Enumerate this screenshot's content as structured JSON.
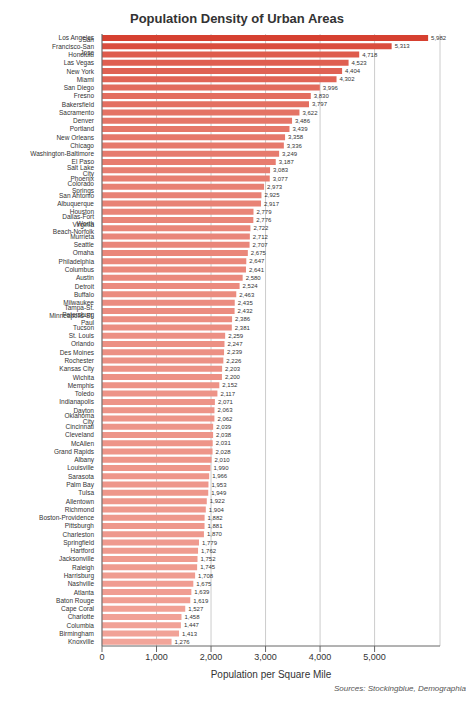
{
  "chart_data": {
    "type": "bar",
    "orientation": "horizontal",
    "title": "Population Density of Urban Areas",
    "xlabel": "Population per Square Mile",
    "annotation": "Sources: Stockingblue, Demographia",
    "categories": [
      "Los Angeles",
      "San Francisco-San Jose",
      "Honolulu",
      "Las Vegas",
      "New York",
      "Miami",
      "San Diego",
      "Fresno",
      "Bakersfield",
      "Sacramento",
      "Denver",
      "Portland",
      "New Orleans",
      "Chicago",
      "Washington-Baltimore",
      "El Paso",
      "Salt Lake City",
      "Phoenix",
      "Colorado Springs",
      "San Antonio",
      "Albuquerque",
      "Houston",
      "Dallas-Fort Worth",
      "Virginia Beach-Norfolk",
      "Murrieta",
      "Seattle",
      "Omaha",
      "Philadelphia",
      "Columbus",
      "Austin",
      "Detroit",
      "Buffalo",
      "Milwaukee",
      "Tampa-St. Petersburg",
      "Minneapolis-St. Paul",
      "Tucson",
      "St. Louis",
      "Orlando",
      "Des Moines",
      "Rochester",
      "Kansas City",
      "Wichita",
      "Memphis",
      "Toledo",
      "Indianapolis",
      "Dayton",
      "Oklahoma City",
      "Cincinnati",
      "Cleveland",
      "McAllen",
      "Grand Rapids",
      "Albany",
      "Louisville",
      "Sarasota",
      "Palm Bay",
      "Tulsa",
      "Allentown",
      "Richmond",
      "Boston-Providence",
      "Pittsburgh",
      "Charleston",
      "Springfield",
      "Hartford",
      "Jacksonville",
      "Raleigh",
      "Harrisburg",
      "Nashville",
      "Atlanta",
      "Baton Rouge",
      "Cape Coral",
      "Charlotte",
      "Columbia",
      "Birmingham",
      "Knoxville"
    ],
    "values": [
      5982,
      5313,
      4718,
      4523,
      4404,
      4302,
      3996,
      3830,
      3797,
      3622,
      3486,
      3439,
      3358,
      3336,
      3249,
      3187,
      3083,
      3077,
      2973,
      2925,
      2917,
      2779,
      2776,
      2722,
      2712,
      2707,
      2675,
      2647,
      2641,
      2580,
      2524,
      2463,
      2435,
      2432,
      2386,
      2381,
      2259,
      2247,
      2239,
      2226,
      2203,
      2200,
      2152,
      2117,
      2071,
      2063,
      2062,
      2039,
      2038,
      2031,
      2028,
      2010,
      1990,
      1966,
      1953,
      1949,
      1922,
      1904,
      1882,
      1881,
      1870,
      1779,
      1762,
      1752,
      1745,
      1708,
      1675,
      1639,
      1619,
      1527,
      1458,
      1447,
      1413,
      1276
    ],
    "value_labels": [
      "5,982",
      "5,313",
      "4,718",
      "4,523",
      "4,404",
      "4,302",
      "3,996",
      "3,830",
      "3,797",
      "3,622",
      "3,486",
      "3,439",
      "3,358",
      "3,336",
      "3,249",
      "3,187",
      "3,083",
      "3,077",
      "2,973",
      "2,925",
      "2,917",
      "2,779",
      "2,776",
      "2,722",
      "2,712",
      "2,707",
      "2,675",
      "2,647",
      "2,641",
      "2,580",
      "2,524",
      "2,463",
      "2,435",
      "2,432",
      "2,386",
      "2,381",
      "2,259",
      "2,247",
      "2,239",
      "2,226",
      "2,203",
      "2,200",
      "2,152",
      "2,117",
      "2,071",
      "2,063",
      "2,062",
      "2,039",
      "2,038",
      "2,031",
      "2,028",
      "2,010",
      "1,990",
      "1,966",
      "1,953",
      "1,949",
      "1,922",
      "1,904",
      "1,882",
      "1,881",
      "1,870",
      "1,779",
      "1,762",
      "1,752",
      "1,745",
      "1,708",
      "1,675",
      "1,639",
      "1,619",
      "1,527",
      "1,458",
      "1,447",
      "1,413",
      "1,276"
    ],
    "colors": [
      "#d64030",
      "#da4e3f",
      "#de5b4c",
      "#df5f51",
      "#df6254",
      "#e06456",
      "#e26b5d",
      "#e36e60",
      "#e36f61",
      "#e47365",
      "#e57668",
      "#e57769",
      "#e6786b",
      "#e6796c",
      "#e67b6e",
      "#e77c6f",
      "#e77e71",
      "#e77e71",
      "#e88174",
      "#e88275",
      "#e88275",
      "#e98578",
      "#e98578",
      "#e98679",
      "#e9867a",
      "#e9867a",
      "#ea877a",
      "#ea887b",
      "#ea887b",
      "#ea897d",
      "#eb8a7e",
      "#eb8c7f",
      "#eb8c80",
      "#eb8c80",
      "#eb8d81",
      "#eb8d81",
      "#ec9084",
      "#ec9084",
      "#ec9084",
      "#ec9185",
      "#ec9185",
      "#ed9185",
      "#ed9286",
      "#ed9387",
      "#ed9488",
      "#ed9488",
      "#ed9488",
      "#ed9589",
      "#ed9589",
      "#ee9589",
      "#ee9589",
      "#ee9589",
      "#ee968a",
      "#ee968a",
      "#ee968b",
      "#ee978b",
      "#ee978b",
      "#ee988c",
      "#ee988c",
      "#ee988c",
      "#ee988d",
      "#ef9a8f",
      "#ef9b8f",
      "#ef9b8f",
      "#ef9b8f",
      "#ef9c90",
      "#f09c91",
      "#f09d92",
      "#f09e92",
      "#f1a094",
      "#f1a196",
      "#f1a196",
      "#f1a297",
      "#f2a59a"
    ],
    "xlim": [
      0,
      6200
    ],
    "xticks": [
      0,
      {
        "value": 1000,
        "label": "1,000"
      },
      {
        "value": 2000,
        "label": "2,000"
      },
      {
        "value": 3000,
        "label": "3,000"
      },
      {
        "value": 4000,
        "label": "4,000"
      },
      {
        "value": 5000,
        "label": "5,000"
      }
    ],
    "grid": true,
    "data_labels": true
  }
}
